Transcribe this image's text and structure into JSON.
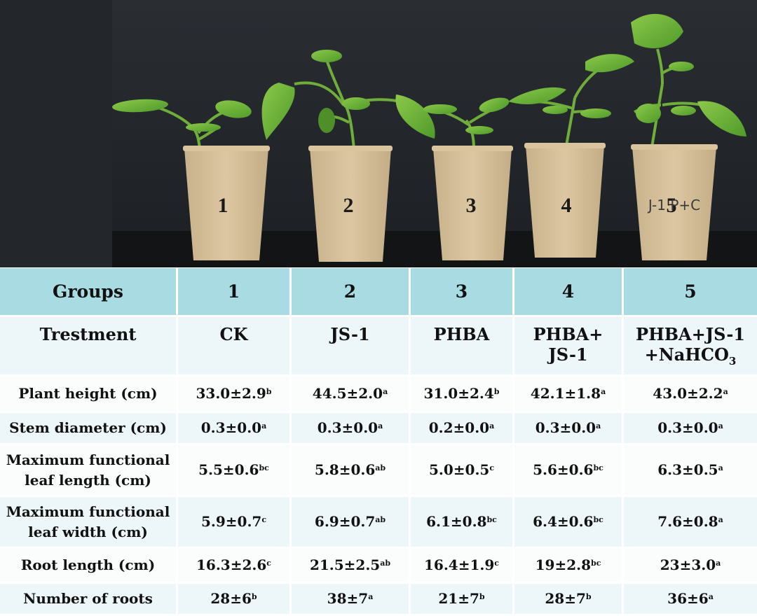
{
  "photo": {
    "cup_labels": [
      "1",
      "2",
      "3",
      "4",
      "5"
    ],
    "cup5_handwriting": "J-1 P+C"
  },
  "table": {
    "header": [
      "Groups",
      "1",
      "2",
      "3",
      "4",
      "5"
    ],
    "treatment": {
      "label": "Trestment",
      "cells": [
        "CK",
        "JS-1",
        "PHBA",
        "PHBA+",
        "PHBA+JS-1"
      ],
      "cells_line2": [
        "",
        "",
        "",
        "JS-1",
        "+NaHCO"
      ],
      "subscript": "3"
    },
    "rows": [
      {
        "label": "Plant height (cm)",
        "label2": "",
        "values": [
          "33.0±2.9",
          "44.5±2.0",
          "31.0±2.4",
          "42.1±1.8",
          "43.0±2.2"
        ],
        "sig": [
          "b",
          "a",
          "b",
          "a",
          "a"
        ]
      },
      {
        "label": "Stem diameter (cm)",
        "label2": "",
        "values": [
          "0.3±0.0",
          "0.3±0.0",
          "0.2±0.0",
          "0.3±0.0",
          "0.3±0.0"
        ],
        "sig": [
          "a",
          "a",
          "a",
          "a",
          "a"
        ]
      },
      {
        "label": "Maximum functional",
        "label2": "leaf length (cm)",
        "values": [
          "5.5±0.6",
          "5.8±0.6",
          "5.0±0.5",
          "5.6±0.6",
          "6.3±0.5"
        ],
        "sig": [
          "bc",
          "ab",
          "c",
          "bc",
          "a"
        ]
      },
      {
        "label": "Maximum functional",
        "label2": "leaf width (cm)",
        "values": [
          "5.9±0.7",
          "6.9±0.7",
          "6.1±0.8",
          "6.4±0.6",
          "7.6±0.8"
        ],
        "sig": [
          "c",
          "ab",
          "bc",
          "bc",
          "a"
        ]
      },
      {
        "label": "Root length (cm)",
        "label2": "",
        "values": [
          "16.3±2.6",
          "21.5±2.5",
          "16.4±1.9",
          "19±2.8",
          "23±3.0"
        ],
        "sig": [
          "c",
          "ab",
          "c",
          "bc",
          "a"
        ]
      },
      {
        "label": "Number of roots",
        "label2": "",
        "values": [
          "28±6",
          "38±7",
          "21±7",
          "28±7",
          "36±6"
        ],
        "sig": [
          "b",
          "a",
          "b",
          "b",
          "a"
        ]
      }
    ]
  }
}
